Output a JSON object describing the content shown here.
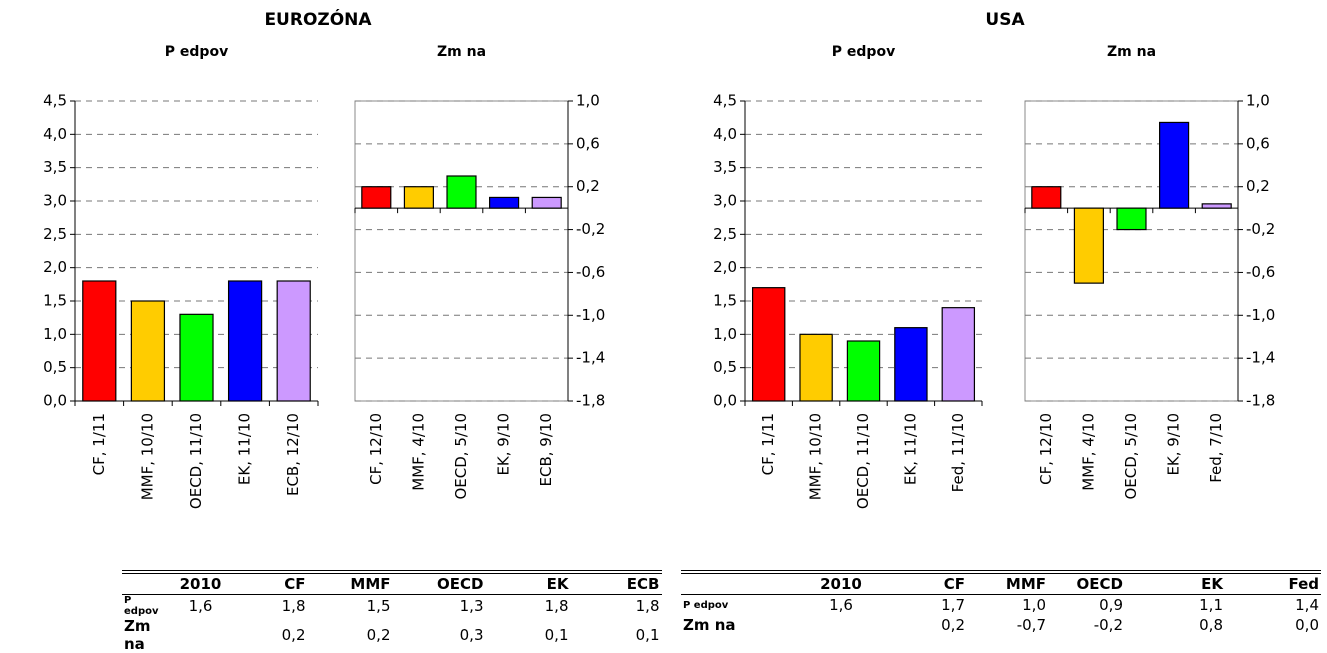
{
  "group_titles": [
    "EUROZÓNA",
    "USA"
  ],
  "chart_data": [
    {
      "type": "bar",
      "title": "P edpov",
      "categories": [
        "CF, 1/11",
        "MMF, 10/10",
        "OECD, 11/10",
        "EK, 11/10",
        "ECB, 12/10"
      ],
      "values": [
        1.8,
        1.5,
        1.3,
        1.8,
        1.8
      ],
      "colors": [
        "#ff0000",
        "#ffcc00",
        "#00ff00",
        "#0000ff",
        "#cc99ff"
      ],
      "ylim": [
        0,
        4.5
      ],
      "yticks": [
        {
          "value": 0,
          "label": "0,0"
        },
        {
          "value": 0.5,
          "label": "0,5"
        },
        {
          "value": 1,
          "label": "1,0"
        },
        {
          "value": 1.5,
          "label": "1,5"
        },
        {
          "value": 2,
          "label": "2,0"
        },
        {
          "value": 2.5,
          "label": "2,5"
        },
        {
          "value": 3,
          "label": "3,0"
        },
        {
          "value": 3.5,
          "label": "3,5"
        },
        {
          "value": 4,
          "label": "4,0"
        },
        {
          "value": 4.5,
          "label": "4,5"
        }
      ],
      "axis_side": "left",
      "grid": true,
      "frame": false
    },
    {
      "type": "bar",
      "title": "Zm na",
      "categories": [
        "CF, 12/10",
        "MMF, 4/10",
        "OECD, 5/10",
        "EK, 9/10",
        "ECB, 9/10"
      ],
      "values": [
        0.2,
        0.2,
        0.3,
        0.1,
        0.1
      ],
      "colors": [
        "#ff0000",
        "#ffcc00",
        "#00ff00",
        "#0000ff",
        "#cc99ff"
      ],
      "ylim": [
        -1.8,
        1
      ],
      "yticks": [
        {
          "value": -1.8,
          "label": "-1,8"
        },
        {
          "value": -1.4,
          "label": "-1,4"
        },
        {
          "value": -1,
          "label": "-1,0"
        },
        {
          "value": -0.6,
          "label": "-0,6"
        },
        {
          "value": -0.2,
          "label": "-0,2"
        },
        {
          "value": 0.2,
          "label": "0,2"
        },
        {
          "value": 0.6,
          "label": "0,6"
        },
        {
          "value": 1,
          "label": "1,0"
        }
      ],
      "axis_side": "right",
      "grid": true,
      "frame": true
    },
    {
      "type": "bar",
      "title": "P edpov",
      "categories": [
        "CF, 1/11",
        "MMF, 10/10",
        "OECD, 11/10",
        "EK, 11/10",
        "Fed, 11/10"
      ],
      "values": [
        1.7,
        1.0,
        0.9,
        1.1,
        1.4
      ],
      "colors": [
        "#ff0000",
        "#ffcc00",
        "#00ff00",
        "#0000ff",
        "#cc99ff"
      ],
      "ylim": [
        0,
        4.5
      ],
      "yticks": [
        {
          "value": 0,
          "label": "0,0"
        },
        {
          "value": 0.5,
          "label": "0,5"
        },
        {
          "value": 1,
          "label": "1,0"
        },
        {
          "value": 1.5,
          "label": "1,5"
        },
        {
          "value": 2,
          "label": "2,0"
        },
        {
          "value": 2.5,
          "label": "2,5"
        },
        {
          "value": 3,
          "label": "3,0"
        },
        {
          "value": 3.5,
          "label": "3,5"
        },
        {
          "value": 4,
          "label": "4,0"
        },
        {
          "value": 4.5,
          "label": "4,5"
        }
      ],
      "axis_side": "left",
      "grid": true,
      "frame": false
    },
    {
      "type": "bar",
      "title": "Zm na",
      "categories": [
        "CF, 12/10",
        "MMF, 4/10",
        "OECD, 5/10",
        "EK, 9/10",
        "Fed, 7/10"
      ],
      "values": [
        0.2,
        -0.7,
        -0.2,
        0.8,
        0.04
      ],
      "colors": [
        "#ff0000",
        "#ffcc00",
        "#00ff00",
        "#0000ff",
        "#cc99ff"
      ],
      "ylim": [
        -1.8,
        1
      ],
      "yticks": [
        {
          "value": -1.8,
          "label": "-1,8"
        },
        {
          "value": -1.4,
          "label": "-1,4"
        },
        {
          "value": -1,
          "label": "-1,0"
        },
        {
          "value": -0.6,
          "label": "-0,6"
        },
        {
          "value": -0.2,
          "label": "-0,2"
        },
        {
          "value": 0.2,
          "label": "0,2"
        },
        {
          "value": 0.6,
          "label": "0,6"
        },
        {
          "value": 1,
          "label": "1,0"
        }
      ],
      "axis_side": "right",
      "grid": true,
      "frame": true
    }
  ],
  "tables": [
    {
      "header": [
        "2010",
        "CF",
        "MMF",
        "OECD",
        "EK",
        "ECB"
      ],
      "rows": [
        {
          "label": "P edpov",
          "cells": [
            "1,6",
            "1,8",
            "1,5",
            "1,3",
            "1,8",
            "1,8"
          ]
        },
        {
          "label": "Zm na",
          "cells": [
            null,
            "0,2",
            "0,2",
            "0,3",
            "0,1",
            "0,1"
          ]
        }
      ]
    },
    {
      "header": [
        "2010",
        "CF",
        "MMF",
        "OECD",
        "EK",
        "Fed"
      ],
      "rows": [
        {
          "label": "P edpov",
          "cells": [
            "1,6",
            "1,7",
            "1,0",
            "0,9",
            "1,1",
            "1,4"
          ]
        },
        {
          "label": "Zm na",
          "cells": [
            null,
            "0,2",
            "-0,7",
            "-0,2",
            "0,8",
            "0,0"
          ]
        }
      ]
    }
  ]
}
